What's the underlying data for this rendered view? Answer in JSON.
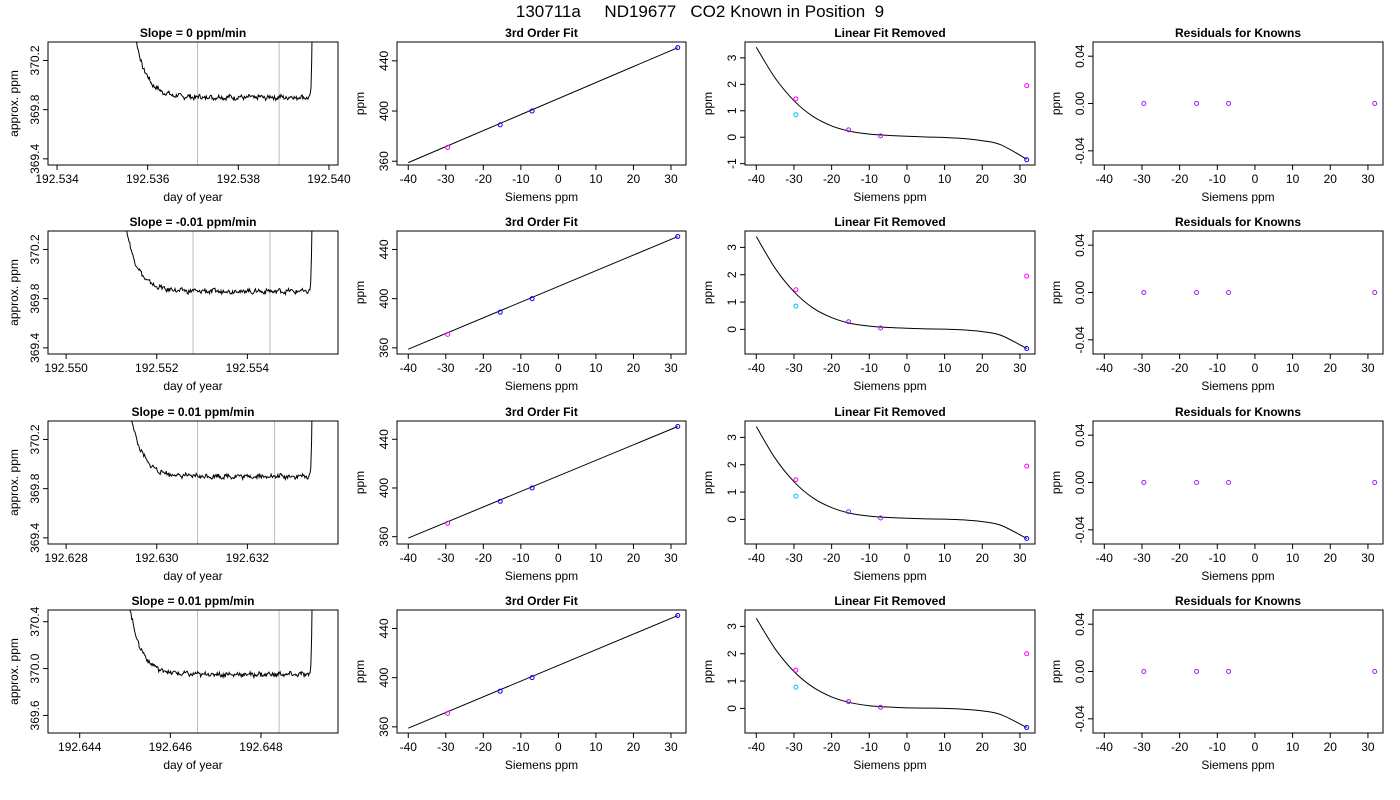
{
  "title": "130711a     ND19677   CO2 Known in Position  9",
  "colors": {
    "trace": "#000000",
    "window_line": "#bebebe",
    "point_blue": "#0000ff",
    "point_magenta": "#ff00ff",
    "point_cyan": "#00bfff",
    "point_purple": "#a020f0",
    "point_red": "#ff0000"
  },
  "chart_data": [
    {
      "type": "line",
      "row": 0,
      "col": 0,
      "title": "Slope =  0  ppm/min",
      "xlabel": "day of year",
      "ylabel": "approx. ppm",
      "xlim": [
        192.5338,
        192.5402
      ],
      "ylim": [
        369.35,
        370.35
      ],
      "xticks": [
        "192.534",
        "192.536",
        "192.538",
        "192.540"
      ],
      "yticks": [
        "369.4",
        "369.8",
        "370.2"
      ],
      "window": [
        192.5371,
        192.5389
      ],
      "trace_start": 192.5355,
      "trace_end": 192.5397,
      "plateau": 369.9
    },
    {
      "type": "line",
      "row": 1,
      "col": 0,
      "title": "Slope =  -0.01  ppm/min",
      "xlabel": "day of year",
      "ylabel": "approx. ppm",
      "xlim": [
        192.5496,
        192.556
      ],
      "ylim": [
        369.35,
        370.35
      ],
      "xticks": [
        "192.550",
        "192.552",
        "192.554"
      ],
      "yticks": [
        "369.4",
        "369.8",
        "370.2"
      ],
      "window": [
        192.5528,
        192.5545
      ],
      "trace_start": 192.5511,
      "trace_end": 192.5555,
      "plateau": 369.86
    },
    {
      "type": "line",
      "row": 2,
      "col": 0,
      "title": "Slope =  0.01  ppm/min",
      "xlabel": "day of year",
      "ylabel": "approx. ppm",
      "xlim": [
        192.6276,
        192.634
      ],
      "ylim": [
        369.35,
        370.35
      ],
      "xticks": [
        "192.628",
        "192.630",
        "192.632"
      ],
      "yticks": [
        "369.4",
        "369.8",
        "370.2"
      ],
      "window": [
        192.6309,
        192.6326
      ],
      "trace_start": 192.6292,
      "trace_end": 192.6335,
      "plateau": 369.9
    },
    {
      "type": "line",
      "row": 3,
      "col": 0,
      "title": "Slope =  0.01  ppm/min",
      "xlabel": "day of year",
      "ylabel": "approx. ppm",
      "xlim": [
        192.6433,
        192.6497
      ],
      "ylim": [
        369.45,
        370.5
      ],
      "xticks": [
        "192.644",
        "192.646",
        "192.648"
      ],
      "yticks": [
        "369.6",
        "370.0",
        "370.4"
      ],
      "window": [
        192.6466,
        192.6484
      ],
      "trace_start": 192.6449,
      "trace_end": 192.6492,
      "plateau": 369.95
    },
    {
      "type": "scatter",
      "row": 0,
      "col": 1,
      "title": "3rd Order Fit",
      "xlabel": "Siemens ppm",
      "ylabel": "ppm",
      "xlim": [
        -43,
        34
      ],
      "ylim": [
        357,
        455
      ],
      "xticks": [
        "-40",
        "-30",
        "-20",
        "-10",
        "0",
        "10",
        "20",
        "30"
      ],
      "yticks": [
        "360",
        "400",
        "440"
      ],
      "points": [
        [
          -29.5,
          371,
          "magenta"
        ],
        [
          -15.5,
          389,
          "blue"
        ],
        [
          -7,
          400,
          "blue"
        ],
        [
          31.8,
          450.5,
          "blue"
        ]
      ],
      "line": [
        [
          -40,
          358.9
        ],
        [
          31.8,
          450.5
        ]
      ]
    },
    {
      "type": "scatter",
      "row": 0,
      "col": 2,
      "title": "Linear Fit Removed",
      "xlabel": "Siemens ppm",
      "ylabel": "ppm",
      "xlim": [
        -43,
        34
      ],
      "ylim": [
        -1.05,
        3.6
      ],
      "xticks": [
        "-40",
        "-30",
        "-20",
        "-10",
        "0",
        "10",
        "20",
        "30"
      ],
      "yticks": [
        "-1",
        "0",
        "1",
        "2",
        "3"
      ],
      "points": [
        [
          -29.5,
          1.45,
          "magenta"
        ],
        [
          -29.5,
          0.85,
          "cyan"
        ],
        [
          -15.5,
          0.28,
          "purple"
        ],
        [
          -7,
          0.05,
          "purple"
        ],
        [
          31.8,
          1.95,
          "magenta"
        ],
        [
          31.8,
          -0.85,
          "blue"
        ]
      ],
      "curve_points": [
        [
          -40,
          3.4
        ],
        [
          -35,
          2.24
        ],
        [
          -30,
          1.38
        ],
        [
          -25,
          0.79
        ],
        [
          -20,
          0.43
        ],
        [
          -15,
          0.22
        ],
        [
          -10,
          0.12
        ],
        [
          -5,
          0.07
        ],
        [
          0,
          0.04
        ],
        [
          5,
          0.01
        ],
        [
          10,
          -0.01
        ],
        [
          15,
          -0.05
        ],
        [
          20,
          -0.13
        ],
        [
          25,
          -0.29
        ],
        [
          31.8,
          -0.83
        ]
      ]
    },
    {
      "type": "scatter",
      "row": 0,
      "col": 3,
      "title": "Residuals for Knowns",
      "xlabel": "Siemens ppm",
      "ylabel": "ppm",
      "xlim": [
        -43,
        34
      ],
      "ylim": [
        -0.052,
        0.052
      ],
      "xticks": [
        "-40",
        "-30",
        "-20",
        "-10",
        "0",
        "10",
        "20",
        "30"
      ],
      "yticks": [
        "-0.04",
        "0.00",
        "0.04"
      ],
      "points": [
        [
          -29.5,
          0,
          "purple"
        ],
        [
          -15.5,
          0,
          "purple"
        ],
        [
          -7,
          0,
          "purple"
        ],
        [
          31.8,
          0,
          "purple"
        ]
      ]
    },
    {
      "type": "scatter",
      "row": 1,
      "col": 1,
      "title": "3rd Order Fit",
      "xlabel": "Siemens ppm",
      "ylabel": "ppm",
      "xlim": [
        -43,
        34
      ],
      "ylim": [
        355,
        455
      ],
      "xticks": [
        "-40",
        "-30",
        "-20",
        "-10",
        "0",
        "10",
        "20",
        "30"
      ],
      "yticks": [
        "360",
        "400",
        "440"
      ],
      "points": [
        [
          -29.5,
          371,
          "magenta"
        ],
        [
          -15.5,
          389,
          "blue"
        ],
        [
          -7,
          400,
          "blue"
        ],
        [
          31.8,
          450.5,
          "blue"
        ]
      ],
      "line": [
        [
          -40,
          358.9
        ],
        [
          31.8,
          450.5
        ]
      ]
    },
    {
      "type": "scatter",
      "row": 1,
      "col": 2,
      "title": "Linear Fit Removed",
      "xlabel": "Siemens ppm",
      "ylabel": "ppm",
      "xlim": [
        -43,
        34
      ],
      "ylim": [
        -0.9,
        3.6
      ],
      "xticks": [
        "-40",
        "-30",
        "-20",
        "-10",
        "0",
        "10",
        "20",
        "30"
      ],
      "yticks": [
        "0",
        "1",
        "2",
        "3"
      ],
      "points": [
        [
          -29.5,
          1.45,
          "magenta"
        ],
        [
          -29.5,
          0.85,
          "cyan"
        ],
        [
          -15.5,
          0.28,
          "purple"
        ],
        [
          -7,
          0.05,
          "purple"
        ],
        [
          31.8,
          1.95,
          "magenta"
        ],
        [
          31.8,
          -0.7,
          "blue"
        ]
      ],
      "curve_points": [
        [
          -40,
          3.4
        ],
        [
          -35,
          2.24
        ],
        [
          -30,
          1.38
        ],
        [
          -25,
          0.79
        ],
        [
          -20,
          0.43
        ],
        [
          -15,
          0.22
        ],
        [
          -10,
          0.12
        ],
        [
          -5,
          0.07
        ],
        [
          0,
          0.04
        ],
        [
          5,
          0.02
        ],
        [
          10,
          0.01
        ],
        [
          15,
          -0.02
        ],
        [
          20,
          -0.08
        ],
        [
          25,
          -0.22
        ],
        [
          31.8,
          -0.7
        ]
      ]
    },
    {
      "type": "scatter",
      "row": 1,
      "col": 3,
      "title": "Residuals for Knowns",
      "xlabel": "Siemens ppm",
      "ylabel": "ppm",
      "xlim": [
        -43,
        34
      ],
      "ylim": [
        -0.052,
        0.052
      ],
      "xticks": [
        "-40",
        "-30",
        "-20",
        "-10",
        "0",
        "10",
        "20",
        "30"
      ],
      "yticks": [
        "-0.04",
        "0.00",
        "0.04"
      ],
      "points": [
        [
          -29.5,
          0,
          "purple"
        ],
        [
          -15.5,
          0,
          "purple"
        ],
        [
          -7,
          0,
          "purple"
        ],
        [
          31.8,
          0,
          "purple"
        ]
      ]
    },
    {
      "type": "scatter",
      "row": 2,
      "col": 1,
      "title": "3rd Order Fit",
      "xlabel": "Siemens ppm",
      "ylabel": "ppm",
      "xlim": [
        -43,
        34
      ],
      "ylim": [
        354,
        455
      ],
      "xticks": [
        "-40",
        "-30",
        "-20",
        "-10",
        "0",
        "10",
        "20",
        "30"
      ],
      "yticks": [
        "360",
        "400",
        "440"
      ],
      "points": [
        [
          -29.5,
          371,
          "magenta"
        ],
        [
          -15.5,
          389,
          "blue"
        ],
        [
          -7,
          400,
          "blue"
        ],
        [
          31.8,
          450.5,
          "blue"
        ]
      ],
      "line": [
        [
          -40,
          358.9
        ],
        [
          31.8,
          450.5
        ]
      ]
    },
    {
      "type": "scatter",
      "row": 2,
      "col": 2,
      "title": "Linear Fit Removed",
      "xlabel": "Siemens ppm",
      "ylabel": "ppm",
      "xlim": [
        -43,
        34
      ],
      "ylim": [
        -0.9,
        3.6
      ],
      "xticks": [
        "-40",
        "-30",
        "-20",
        "-10",
        "0",
        "10",
        "20",
        "30"
      ],
      "yticks": [
        "0",
        "1",
        "2",
        "3"
      ],
      "points": [
        [
          -29.5,
          1.45,
          "magenta"
        ],
        [
          -29.5,
          0.85,
          "cyan"
        ],
        [
          -15.5,
          0.28,
          "purple"
        ],
        [
          -7,
          0.05,
          "purple"
        ],
        [
          31.8,
          1.95,
          "magenta"
        ],
        [
          31.8,
          -0.7,
          "blue"
        ]
      ],
      "curve_points": [
        [
          -40,
          3.4
        ],
        [
          -35,
          2.24
        ],
        [
          -30,
          1.38
        ],
        [
          -25,
          0.79
        ],
        [
          -20,
          0.43
        ],
        [
          -15,
          0.22
        ],
        [
          -10,
          0.12
        ],
        [
          -5,
          0.07
        ],
        [
          0,
          0.04
        ],
        [
          5,
          0.02
        ],
        [
          10,
          0.01
        ],
        [
          15,
          -0.02
        ],
        [
          20,
          -0.08
        ],
        [
          25,
          -0.22
        ],
        [
          31.8,
          -0.7
        ]
      ]
    },
    {
      "type": "scatter",
      "row": 2,
      "col": 3,
      "title": "Residuals for Knowns",
      "xlabel": "Siemens ppm",
      "ylabel": "ppm",
      "xlim": [
        -43,
        34
      ],
      "ylim": [
        -0.052,
        0.052
      ],
      "xticks": [
        "-40",
        "-30",
        "-20",
        "-10",
        "0",
        "10",
        "20",
        "30"
      ],
      "yticks": [
        "-0.04",
        "0.00",
        "0.04"
      ],
      "points": [
        [
          -29.5,
          0,
          "purple"
        ],
        [
          -15.5,
          0,
          "purple"
        ],
        [
          -7,
          0,
          "purple"
        ],
        [
          31.8,
          0,
          "purple"
        ]
      ]
    },
    {
      "type": "scatter",
      "row": 3,
      "col": 1,
      "title": "3rd Order Fit",
      "xlabel": "Siemens ppm",
      "ylabel": "ppm",
      "xlim": [
        -43,
        34
      ],
      "ylim": [
        355,
        455
      ],
      "xticks": [
        "-40",
        "-30",
        "-20",
        "-10",
        "0",
        "10",
        "20",
        "30"
      ],
      "yticks": [
        "360",
        "400",
        "440"
      ],
      "points": [
        [
          -29.5,
          371,
          "magenta"
        ],
        [
          -15.5,
          389,
          "blue"
        ],
        [
          -7,
          400,
          "blue"
        ],
        [
          31.8,
          450.5,
          "blue"
        ]
      ],
      "line": [
        [
          -40,
          358.9
        ],
        [
          31.8,
          450.5
        ]
      ]
    },
    {
      "type": "scatter",
      "row": 3,
      "col": 2,
      "title": "Linear Fit Removed",
      "xlabel": "Siemens ppm",
      "ylabel": "ppm",
      "xlim": [
        -43,
        34
      ],
      "ylim": [
        -0.9,
        3.6
      ],
      "xticks": [
        "-40",
        "-30",
        "-20",
        "-10",
        "0",
        "10",
        "20",
        "30"
      ],
      "yticks": [
        "0",
        "1",
        "2",
        "3"
      ],
      "points": [
        [
          -29.5,
          1.4,
          "magenta"
        ],
        [
          -29.5,
          0.78,
          "cyan"
        ],
        [
          -15.5,
          0.25,
          "purple"
        ],
        [
          -7,
          0.04,
          "purple"
        ],
        [
          31.8,
          2.0,
          "magenta"
        ],
        [
          31.8,
          -0.7,
          "blue"
        ]
      ],
      "curve_points": [
        [
          -40,
          3.3
        ],
        [
          -35,
          2.18
        ],
        [
          -30,
          1.35
        ],
        [
          -25,
          0.78
        ],
        [
          -20,
          0.42
        ],
        [
          -15,
          0.21
        ],
        [
          -10,
          0.1
        ],
        [
          -5,
          0.05
        ],
        [
          0,
          0.02
        ],
        [
          5,
          0.01
        ],
        [
          10,
          0.0
        ],
        [
          15,
          -0.03
        ],
        [
          20,
          -0.09
        ],
        [
          25,
          -0.23
        ],
        [
          31.8,
          -0.7
        ]
      ]
    },
    {
      "type": "scatter",
      "row": 3,
      "col": 3,
      "title": "Residuals for Knowns",
      "xlabel": "Siemens ppm",
      "ylabel": "ppm",
      "xlim": [
        -43,
        34
      ],
      "ylim": [
        -0.052,
        0.052
      ],
      "xticks": [
        "-40",
        "-30",
        "-20",
        "-10",
        "0",
        "10",
        "20",
        "30"
      ],
      "yticks": [
        "-0.04",
        "0.00",
        "0.04"
      ],
      "points": [
        [
          -29.5,
          0,
          "purple"
        ],
        [
          -15.5,
          0,
          "purple"
        ],
        [
          -7,
          0,
          "purple"
        ],
        [
          31.8,
          0,
          "purple"
        ]
      ]
    }
  ]
}
